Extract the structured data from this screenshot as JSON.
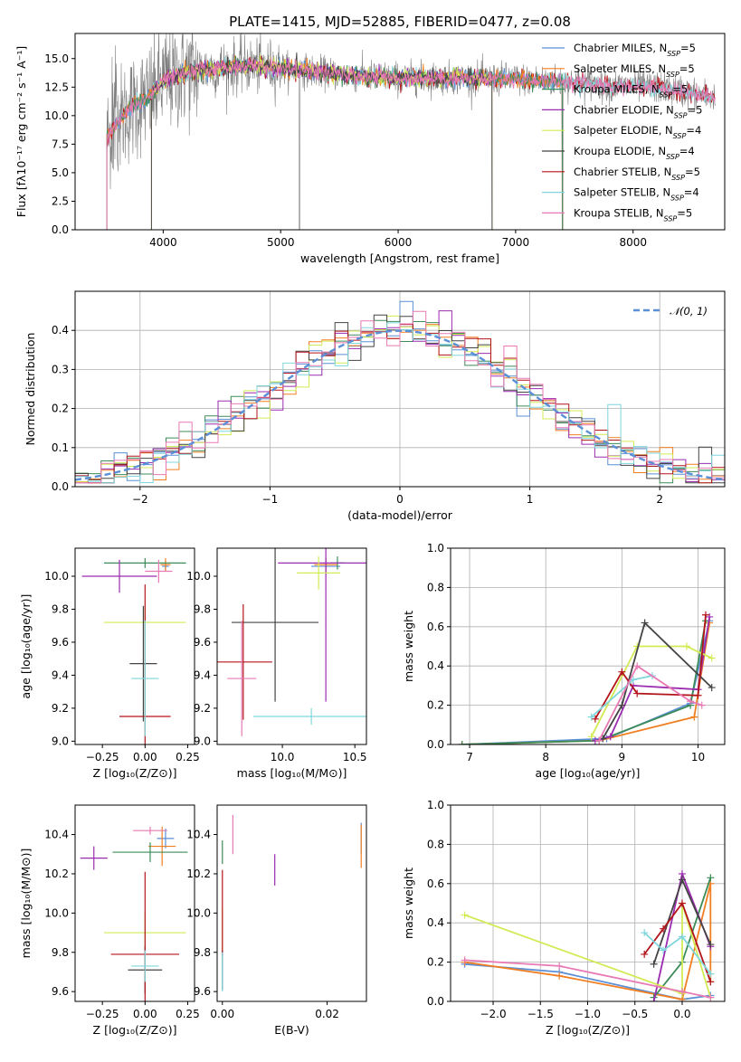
{
  "colors": [
    "#5b8fd6",
    "#f07f22",
    "#3c8c58",
    "#9b2bb0",
    "#d2eb55",
    "#444444",
    "#b3141a",
    "#7fd6dc",
    "#e879b4",
    "#808080"
  ],
  "chart_data": [
    {
      "id": "spectrum",
      "type": "line",
      "title": "PLATE=1415, MJD=52885, FIBERID=0477, z=0.08",
      "xlabel": "wavelength [Angstrom, rest frame]",
      "ylabel": "Flux [fλ10⁻¹⁷ erg cm⁻² s⁻¹ A⁻¹]",
      "xlim": [
        3250,
        8780
      ],
      "ylim": [
        0,
        17.2
      ],
      "xticks": [
        4000,
        5000,
        6000,
        7000,
        8000
      ],
      "yticks": [
        0.0,
        2.5,
        5.0,
        7.5,
        10.0,
        12.5,
        15.0
      ],
      "grid": false,
      "legend_position": "right",
      "legend": [
        {
          "label": "Chabrier MILES, N",
          "sub": "SSP",
          "suffix": "=5"
        },
        {
          "label": "Salpeter MILES, N",
          "sub": "SSP",
          "suffix": "=5"
        },
        {
          "label": "Kroupa MILES, N",
          "sub": "SSP",
          "suffix": "=5"
        },
        {
          "label": "Chabrier ELODIE, N",
          "sub": "SSP",
          "suffix": "=5"
        },
        {
          "label": "Salpeter ELODIE, N",
          "sub": "SSP",
          "suffix": "=4"
        },
        {
          "label": "Kroupa ELODIE, N",
          "sub": "SSP",
          "suffix": "=4"
        },
        {
          "label": "Chabrier STELIB, N",
          "sub": "SSP",
          "suffix": "=5"
        },
        {
          "label": "Salpeter STELIB, N",
          "sub": "SSP",
          "suffix": "=4"
        },
        {
          "label": "Kroupa STELIB, N",
          "sub": "SSP",
          "suffix": "=5"
        }
      ],
      "continuum": [
        [
          3520,
          8.1
        ],
        [
          3700,
          10.5
        ],
        [
          3900,
          11.8
        ],
        [
          4000,
          13.1
        ],
        [
          4300,
          14.0
        ],
        [
          4700,
          14.4
        ],
        [
          5000,
          14.2
        ],
        [
          5500,
          13.6
        ],
        [
          6000,
          13.3
        ],
        [
          6500,
          13.3
        ],
        [
          7000,
          13.2
        ],
        [
          7400,
          13.0
        ],
        [
          7800,
          12.6
        ],
        [
          8200,
          12.5
        ],
        [
          8700,
          11.6
        ]
      ]
    },
    {
      "id": "residuals",
      "type": "histogram",
      "xlabel": "(data-model)/error",
      "ylabel": "Normed distribution",
      "xlim": [
        -2.5,
        2.5
      ],
      "ylim": [
        0,
        0.5
      ],
      "xticks": [
        -2,
        -1,
        0,
        1,
        2
      ],
      "yticks": [
        0.0,
        0.1,
        0.2,
        0.3,
        0.4
      ],
      "grid": true,
      "legend_position": "top-right",
      "normal_label": "𝒩(0, 1)",
      "bin_width": 0.1,
      "spike_bins": [
        [
          -1.7,
          0.165
        ],
        [
          -0.5,
          0.42
        ],
        [
          0.0,
          0.474
        ],
        [
          0.3,
          0.45
        ],
        [
          0.8,
          0.36
        ],
        [
          1.6,
          0.21
        ]
      ]
    },
    {
      "id": "age-vs-Z",
      "type": "errorbar",
      "xlabel": "Z [log₁₀(Z/Z⊙)]",
      "ylabel": "age  [log₁₀(age/yr)]",
      "xlim": [
        -0.41,
        0.29
      ],
      "ylim": [
        8.98,
        10.17
      ],
      "xticks": [
        -0.25,
        0.0,
        0.25
      ],
      "xticklabels": [
        "−0.25",
        "0.00",
        "0.25"
      ],
      "yticks": [
        9.0,
        9.2,
        9.4,
        9.6,
        9.8,
        10.0
      ],
      "points": [
        {
          "c": 0,
          "x": 0.12,
          "xe": 0.02,
          "y": 10.06,
          "ye": 0.03
        },
        {
          "c": 1,
          "x": 0.12,
          "xe": 0.03,
          "y": 10.07,
          "ye": 0.04
        },
        {
          "c": 2,
          "x": 0.0,
          "xe": 0.24,
          "y": 10.08,
          "ye": 0.03
        },
        {
          "c": 3,
          "x": -0.15,
          "xe": 0.22,
          "y": 10.0,
          "ye": 0.1
        },
        {
          "c": 4,
          "x": 0.0,
          "xe": 0.24,
          "y": 9.72,
          "ye": 0.1
        },
        {
          "c": 5,
          "x": -0.01,
          "xe": 0.08,
          "y": 9.47,
          "ye": 0.35
        },
        {
          "c": 6,
          "x": 0.0,
          "xe": 0.15,
          "y": 9.15,
          "ye": 0.8
        },
        {
          "c": 7,
          "x": 0.0,
          "xe": 0.08,
          "y": 9.38,
          "ye": 0.35
        },
        {
          "c": 8,
          "x": 0.08,
          "xe": 0.08,
          "y": 10.03,
          "ye": 0.07
        }
      ]
    },
    {
      "id": "age-vs-mass",
      "type": "errorbar",
      "xlabel": "mass [log₁₀(M/M⊙)]",
      "ylabel": "",
      "xlim": [
        9.55,
        10.58
      ],
      "ylim": [
        8.98,
        10.17
      ],
      "xticks": [
        10.0,
        10.5
      ],
      "yticks": [
        9.0,
        9.2,
        9.4,
        9.6,
        9.8,
        10.0
      ],
      "points": [
        {
          "c": 0,
          "x": 10.3,
          "xe": 0.1,
          "y": 10.06,
          "ye": 0.05
        },
        {
          "c": 1,
          "x": 10.3,
          "xe": 0.08,
          "y": 10.07,
          "ye": 0.04
        },
        {
          "c": 2,
          "x": 10.38,
          "xe": 0.05,
          "y": 10.08,
          "ye": 0.04
        },
        {
          "c": 3,
          "x": 10.3,
          "xe": 0.33,
          "y": 10.08,
          "ye": 0.84
        },
        {
          "c": 4,
          "x": 10.25,
          "xe": 0.15,
          "y": 10.02,
          "ye": 0.1
        },
        {
          "c": 5,
          "x": 9.95,
          "xe": 0.3,
          "y": 9.72,
          "ye": 0.48
        },
        {
          "c": 6,
          "x": 9.73,
          "xe": 0.2,
          "y": 9.48,
          "ye": 0.35
        },
        {
          "c": 7,
          "x": 10.2,
          "xe": 0.4,
          "y": 9.15,
          "ye": 0.05
        },
        {
          "c": 8,
          "x": 9.72,
          "xe": 0.1,
          "y": 9.38,
          "ye": 0.35
        }
      ]
    },
    {
      "id": "weight-vs-age",
      "type": "line",
      "xlabel": "age  [log₁₀(age/yr)]",
      "ylabel": "mass weight",
      "xlim": [
        6.75,
        10.35
      ],
      "ylim": [
        0.0,
        1.0
      ],
      "xticks": [
        7,
        8,
        9,
        10
      ],
      "yticks": [
        0.0,
        0.2,
        0.4,
        0.6,
        0.8,
        1.0
      ],
      "grid": true,
      "series": [
        {
          "c": 0,
          "x": [
            6.9,
            8.8,
            9.9,
            10.15
          ],
          "y": [
            0.0,
            0.03,
            0.21,
            0.63
          ]
        },
        {
          "c": 1,
          "x": [
            6.9,
            8.7,
            9.95,
            10.15
          ],
          "y": [
            0.0,
            0.02,
            0.14,
            0.62
          ]
        },
        {
          "c": 2,
          "x": [
            6.9,
            8.7,
            9.9,
            10.1
          ],
          "y": [
            0.0,
            0.02,
            0.2,
            0.63
          ]
        },
        {
          "c": 3,
          "x": [
            8.65,
            8.85,
            9.15,
            10.0,
            10.15
          ],
          "y": [
            0.02,
            0.04,
            0.3,
            0.28,
            0.65
          ]
        },
        {
          "c": 4,
          "x": [
            8.6,
            9.2,
            9.85,
            10.18
          ],
          "y": [
            0.04,
            0.5,
            0.5,
            0.44
          ]
        },
        {
          "c": 5,
          "x": [
            8.75,
            9.0,
            9.3,
            10.18
          ],
          "y": [
            0.03,
            0.2,
            0.62,
            0.29
          ]
        },
        {
          "c": 6,
          "x": [
            8.65,
            9.0,
            9.2,
            10.0,
            10.1
          ],
          "y": [
            0.13,
            0.37,
            0.26,
            0.25,
            0.66
          ]
        },
        {
          "c": 7,
          "x": [
            8.6,
            9.15,
            9.4
          ],
          "y": [
            0.14,
            0.33,
            0.35
          ]
        },
        {
          "c": 8,
          "x": [
            8.7,
            9.2,
            9.9,
            10.05
          ],
          "y": [
            0.02,
            0.4,
            0.22,
            0.2
          ]
        }
      ]
    },
    {
      "id": "mass-vs-Z",
      "type": "errorbar",
      "xlabel": "Z [log₁₀(Z/Z⊙)]",
      "ylabel": "mass [log₁₀(M/M⊙)]",
      "xlim": [
        -0.41,
        0.29
      ],
      "ylim": [
        9.55,
        10.55
      ],
      "xticks": [
        -0.25,
        0.0,
        0.25
      ],
      "xticklabels": [
        "−0.25",
        "0.00",
        "0.25"
      ],
      "yticks": [
        9.6,
        9.8,
        10.0,
        10.2,
        10.4
      ],
      "points": [
        {
          "c": 0,
          "x": 0.12,
          "xe": 0.05,
          "y": 10.38,
          "ye": 0.05
        },
        {
          "c": 1,
          "x": 0.1,
          "xe": 0.08,
          "y": 10.34,
          "ye": 0.1
        },
        {
          "c": 2,
          "x": 0.03,
          "xe": 0.22,
          "y": 10.31,
          "ye": 0.05
        },
        {
          "c": 3,
          "x": -0.3,
          "xe": 0.08,
          "y": 10.28,
          "ye": 0.06
        },
        {
          "c": 4,
          "x": 0.0,
          "xe": 0.24,
          "y": 9.9,
          "ye": 0.1
        },
        {
          "c": 5,
          "x": 0.0,
          "xe": 0.1,
          "y": 9.71,
          "ye": 0.12
        },
        {
          "c": 6,
          "x": 0.0,
          "xe": 0.2,
          "y": 9.79,
          "ye": 0.42
        },
        {
          "c": 7,
          "x": 0.0,
          "xe": 0.08,
          "y": 9.73,
          "ye": 0.08
        },
        {
          "c": 8,
          "x": 0.03,
          "xe": 0.1,
          "y": 10.42,
          "ye": 0.02
        }
      ]
    },
    {
      "id": "mass-vs-EBV",
      "type": "errorbar",
      "xlabel": "E(B-V)",
      "ylabel": "",
      "xlim": [
        -0.001,
        0.0275
      ],
      "ylim": [
        9.55,
        10.55
      ],
      "xticks": [
        0.0,
        0.02
      ],
      "xticklabels": [
        "0.00",
        "0.02"
      ],
      "yticks": [
        9.6,
        9.8,
        10.0,
        10.2,
        10.4
      ],
      "points": [
        {
          "c": 0,
          "x": 0.0265,
          "xe": 0,
          "y": 10.38,
          "ye": 0.08
        },
        {
          "c": 1,
          "x": 0.0265,
          "xe": 0,
          "y": 10.34,
          "ye": 0.11
        },
        {
          "c": 2,
          "x": 0.0,
          "xe": 0,
          "y": 10.31,
          "ye": 0.06
        },
        {
          "c": 3,
          "x": 0.01,
          "xe": 0,
          "y": 10.22,
          "ye": 0.08
        },
        {
          "c": 4,
          "x": 0.0,
          "xe": 0,
          "y": 9.9,
          "ye": 0.12
        },
        {
          "c": 5,
          "x": 0.0,
          "xe": 0,
          "y": 9.71,
          "ye": 0.1
        },
        {
          "c": 6,
          "x": 0.0,
          "xe": 0,
          "y": 10.0,
          "ye": 0.22
        },
        {
          "c": 7,
          "x": 0.0,
          "xe": 0,
          "y": 9.7,
          "ye": 0.1
        },
        {
          "c": 8,
          "x": 0.002,
          "xe": 0,
          "y": 10.4,
          "ye": 0.1
        }
      ]
    },
    {
      "id": "weight-vs-Z",
      "type": "line",
      "xlabel": "Z [log₁₀(Z/Z⊙)]",
      "ylabel": "mass weight",
      "xlim": [
        -2.45,
        0.45
      ],
      "ylim": [
        0.0,
        1.0
      ],
      "xticks": [
        -2.0,
        -1.5,
        -1.0,
        -0.5,
        0.0
      ],
      "xticklabels": [
        "−2.0",
        "−1.5",
        "−1.0",
        "−0.5",
        "0.0"
      ],
      "yticks": [
        0.0,
        0.2,
        0.4,
        0.6,
        0.8,
        1.0
      ],
      "grid": true,
      "series": [
        {
          "c": 0,
          "x": [
            -2.3,
            -1.3,
            0.0,
            0.3
          ],
          "y": [
            0.19,
            0.15,
            0.01,
            0.03
          ]
        },
        {
          "c": 1,
          "x": [
            -2.3,
            -1.3,
            0.0,
            0.3,
            0.3
          ],
          "y": [
            0.2,
            0.13,
            0.01,
            0.6,
            0.1
          ]
        },
        {
          "c": 2,
          "x": [
            -0.3,
            0.0,
            0.3
          ],
          "y": [
            0.02,
            0.2,
            0.63
          ]
        },
        {
          "c": 3,
          "x": [
            -0.3,
            0.0,
            0.3
          ],
          "y": [
            0.0,
            0.65,
            0.28
          ]
        },
        {
          "c": 4,
          "x": [
            -2.3,
            0.0,
            0.0,
            0.3
          ],
          "y": [
            0.44,
            0.04,
            0.5,
            0.02
          ]
        },
        {
          "c": 5,
          "x": [
            -0.3,
            0.0,
            0.3
          ],
          "y": [
            0.19,
            0.62,
            0.29
          ]
        },
        {
          "c": 6,
          "x": [
            -0.4,
            -0.2,
            0.0,
            0.3
          ],
          "y": [
            0.24,
            0.37,
            0.5,
            0.1
          ]
        },
        {
          "c": 7,
          "x": [
            -0.4,
            -0.2,
            0.0,
            0.3
          ],
          "y": [
            0.35,
            0.26,
            0.33,
            0.14
          ]
        },
        {
          "c": 8,
          "x": [
            -2.3,
            -1.3,
            0.0,
            0.3
          ],
          "y": [
            0.21,
            0.18,
            0.05,
            0.02
          ]
        }
      ]
    }
  ]
}
